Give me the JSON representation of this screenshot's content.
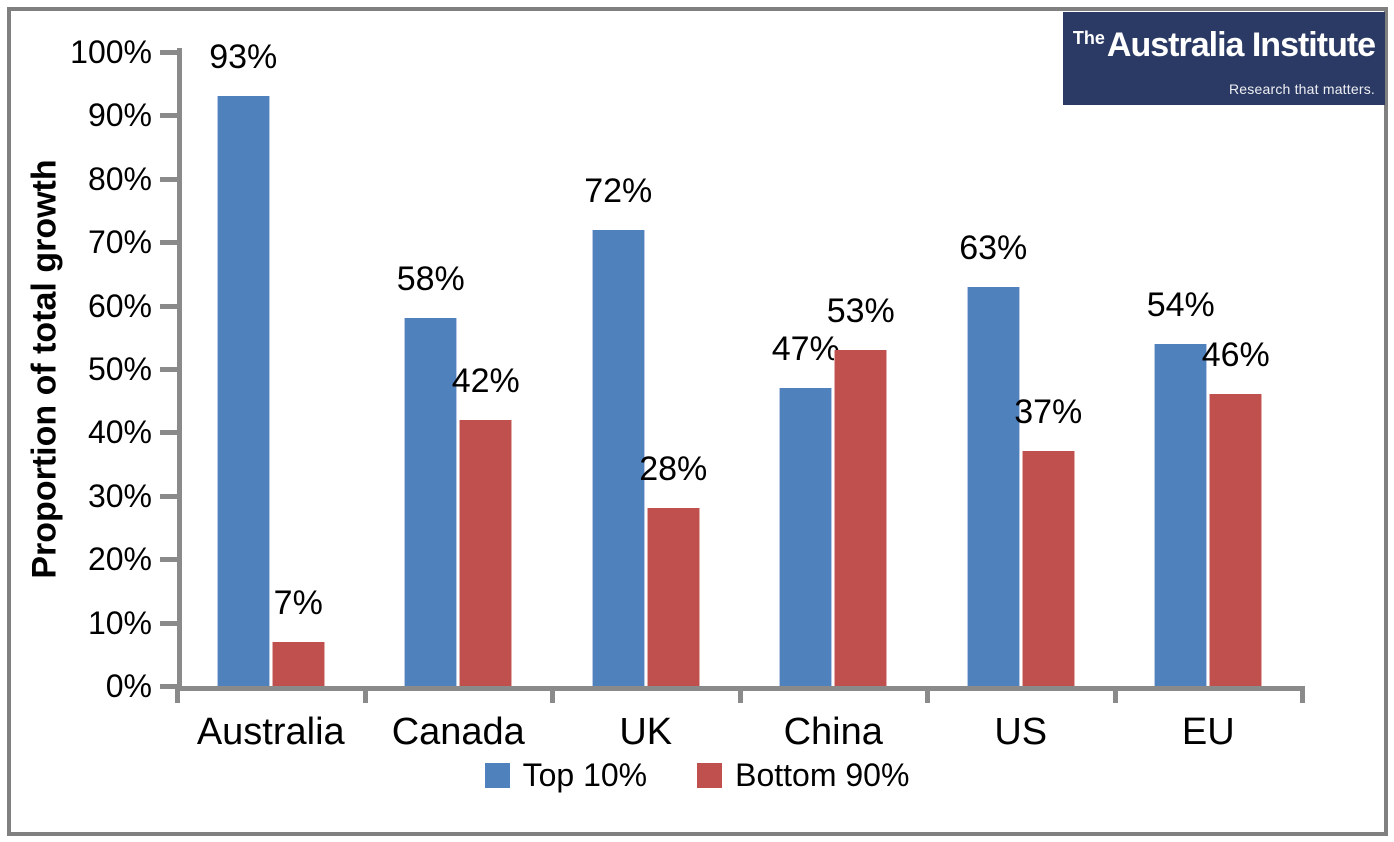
{
  "logo": {
    "brand_prefix": "The",
    "brand_name": "Australia Institute",
    "tagline": "Research that matters.",
    "bg_color": "#2b3a64",
    "text_color": "#ffffff"
  },
  "chart_data": {
    "type": "bar",
    "title": "",
    "ylabel": "Proportion of total growth",
    "xlabel": "",
    "categories": [
      "Australia",
      "Canada",
      "UK",
      "China",
      "US",
      "EU"
    ],
    "series": [
      {
        "name": "Top 10%",
        "color": "#4F81BD",
        "edge_color": "#b7c9e5",
        "values": [
          93,
          58,
          72,
          47,
          63,
          54
        ]
      },
      {
        "name": "Bottom 90%",
        "color": "#C0504D",
        "edge_color": "#e2aeac",
        "values": [
          7,
          42,
          28,
          53,
          37,
          46
        ]
      }
    ],
    "data_labels": [
      [
        "93%",
        "58%",
        "72%",
        "47%",
        "63%",
        "54%"
      ],
      [
        "7%",
        "42%",
        "28%",
        "53%",
        "37%",
        "46%"
      ]
    ],
    "y_axis": {
      "min": 0,
      "max": 100,
      "step": 10,
      "tick_labels": [
        "0%",
        "10%",
        "20%",
        "30%",
        "40%",
        "50%",
        "60%",
        "70%",
        "80%",
        "90%",
        "100%"
      ]
    },
    "grid": false,
    "legend_position": "bottom",
    "axis_color": "#8a8a8a",
    "border_color": "#808080",
    "background_color": "#ffffff"
  }
}
